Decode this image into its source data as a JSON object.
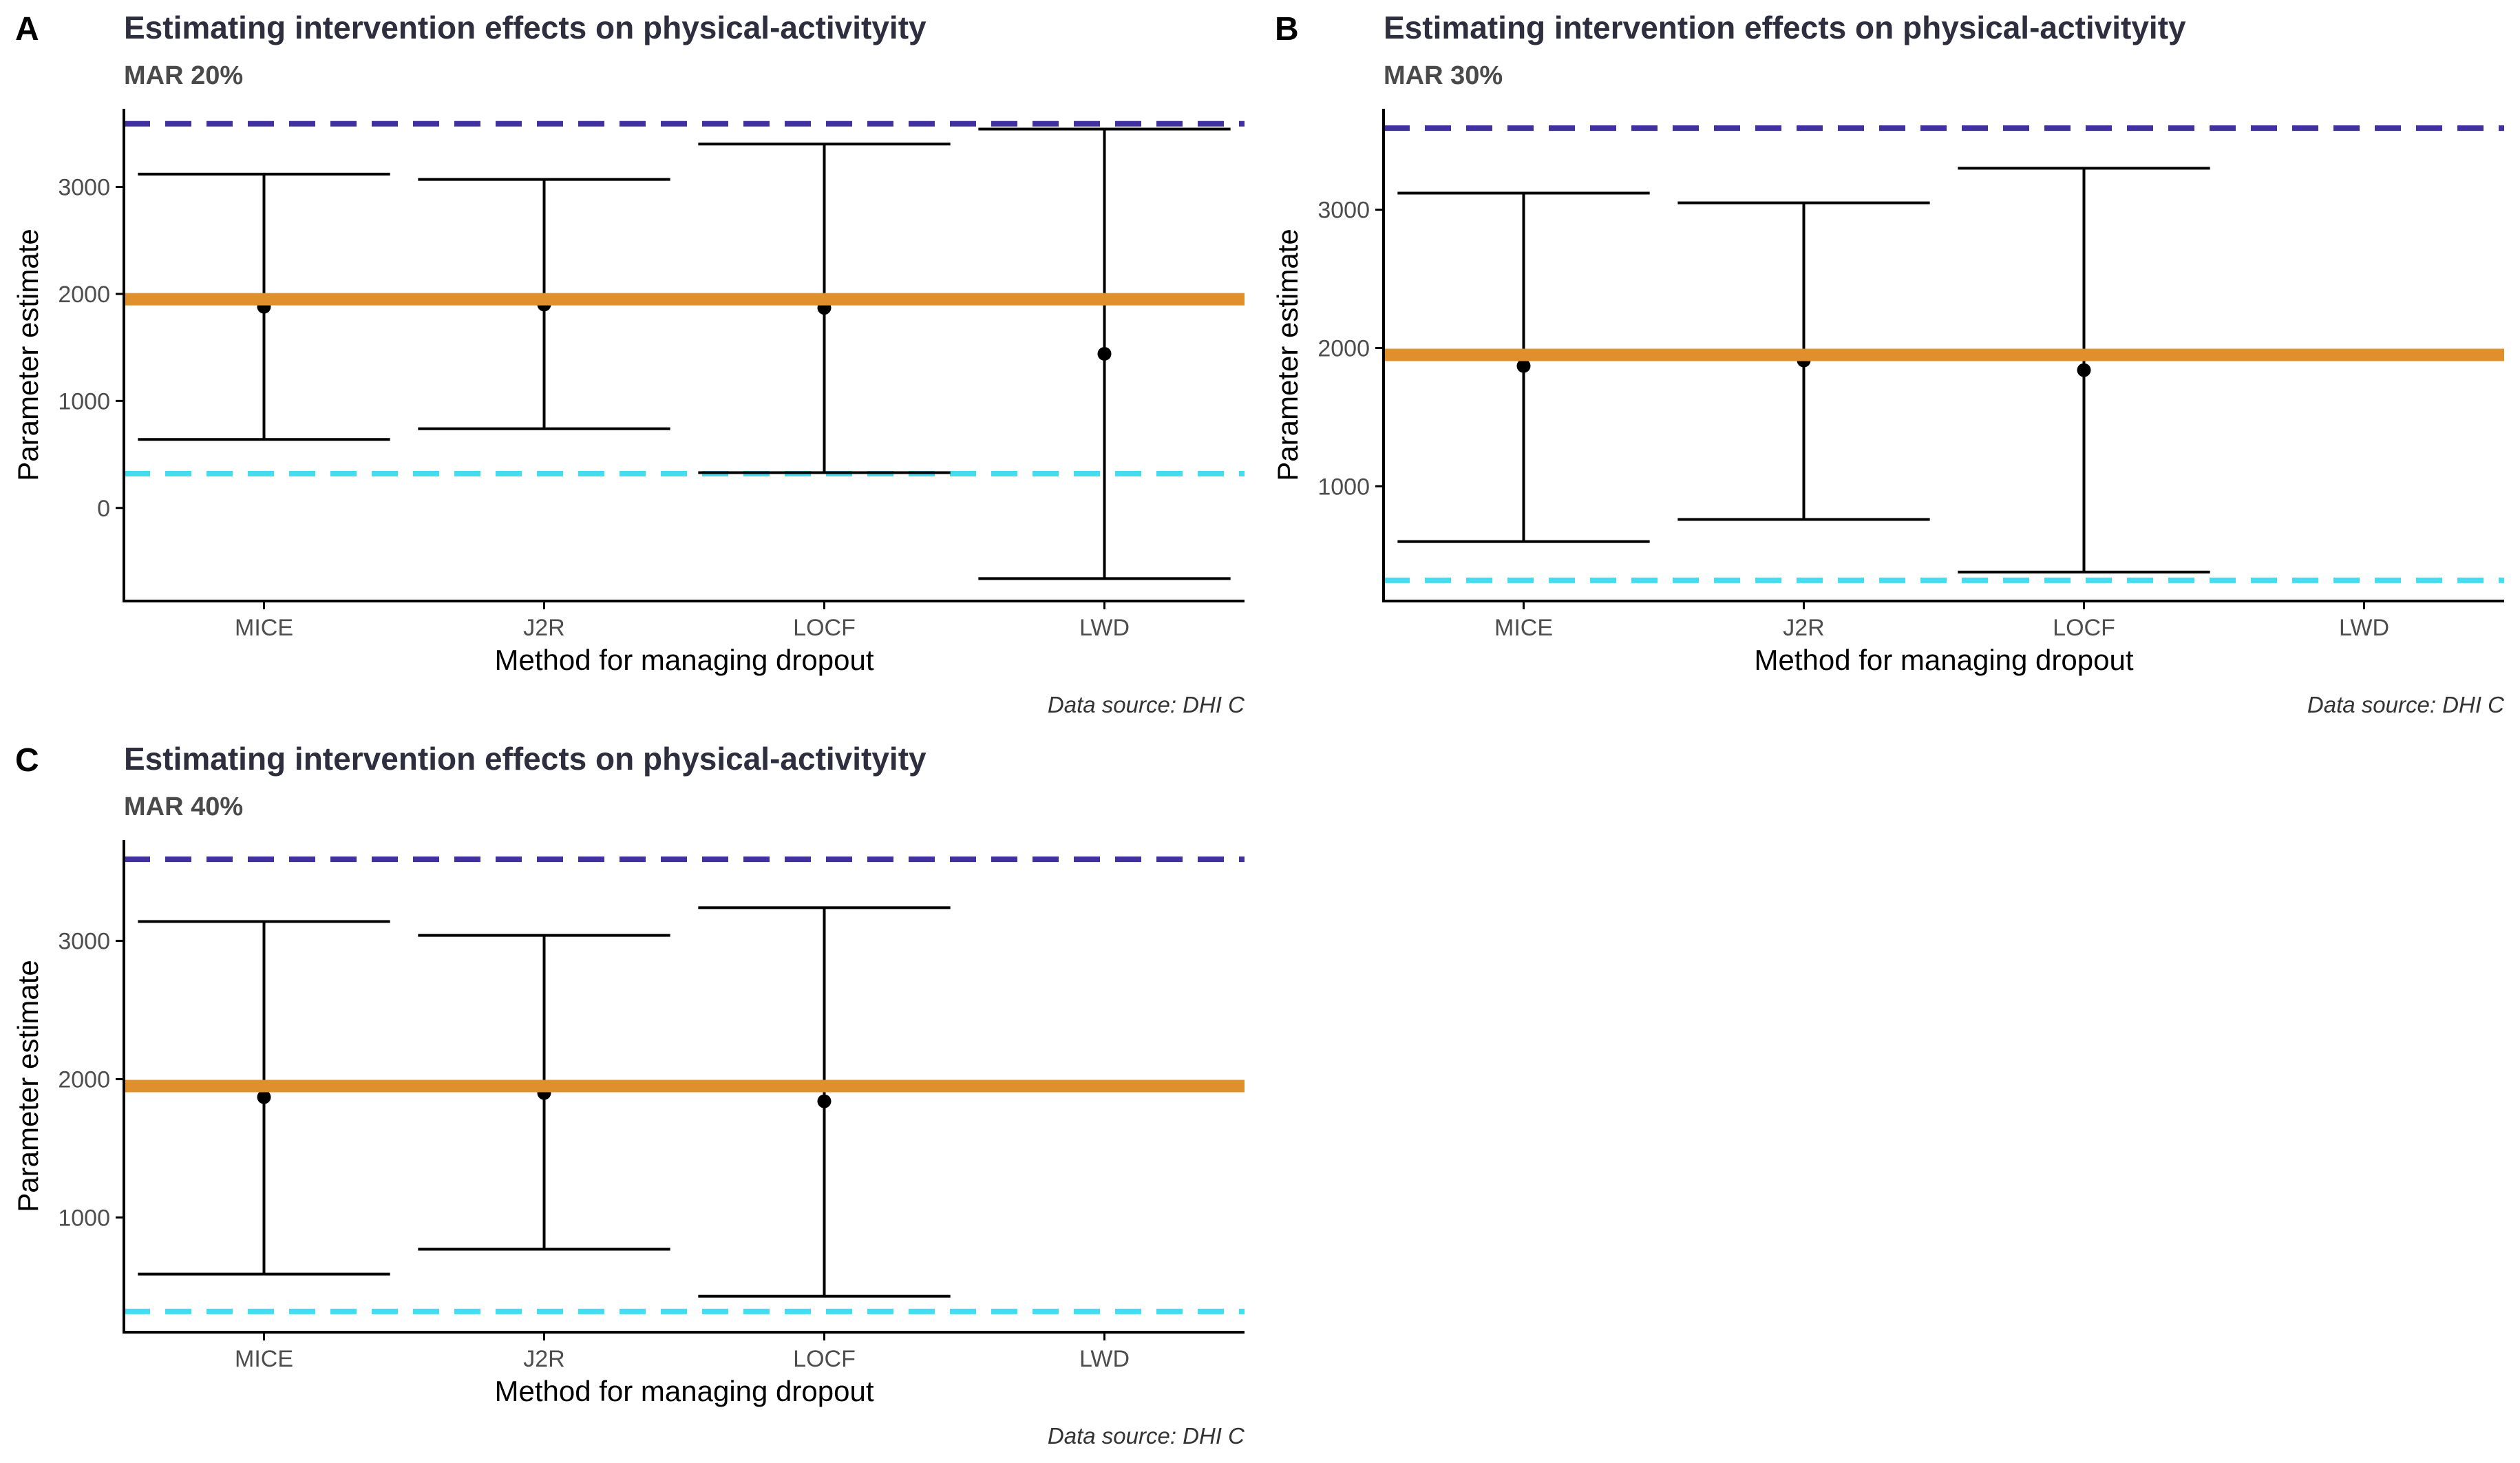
{
  "chart_data": [
    {
      "panel_label": "A",
      "type": "errorbar",
      "title": "Estimating intervention effects on physical-activityity",
      "subtitle": "MAR 20%",
      "xlabel": "Method for managing dropout",
      "ylabel": "Parameter estimate",
      "caption": "Data source: DHI C",
      "categories": [
        "MICE",
        "J2R",
        "LOCF",
        "LWD"
      ],
      "ylim": [
        -870,
        3730
      ],
      "yticks": [
        0,
        1000,
        2000,
        3000
      ],
      "ytick_labels": [
        "0",
        "1000",
        "2000",
        "3000"
      ],
      "estimates": [
        1880,
        1900,
        1870,
        1440
      ],
      "lower": [
        640,
        740,
        330,
        -660
      ],
      "upper": [
        3120,
        3070,
        3400,
        3540
      ],
      "reference_lines": {
        "true_effect": 1950,
        "upper_dashed": 3590,
        "lower_dashed": 320
      },
      "grid": false
    },
    {
      "panel_label": "B",
      "type": "errorbar",
      "title": "Estimating intervention effects on physical-activityity",
      "subtitle": "MAR 30%",
      "xlabel": "Method for managing dropout",
      "ylabel": "Parameter estimate",
      "caption": "Data source: DHI C",
      "categories": [
        "MICE",
        "J2R",
        "LOCF",
        "LWD"
      ],
      "ylim": [
        170,
        3730
      ],
      "yticks": [
        1000,
        2000,
        3000
      ],
      "ytick_labels": [
        "1000",
        "2000",
        "3000"
      ],
      "estimates": [
        1870,
        1910,
        1840,
        null
      ],
      "lower": [
        600,
        760,
        380,
        null
      ],
      "upper": [
        3120,
        3050,
        3300,
        null
      ],
      "reference_lines": {
        "true_effect": 1950,
        "upper_dashed": 3590,
        "lower_dashed": 320
      },
      "grid": false
    },
    {
      "panel_label": "C",
      "type": "errorbar",
      "title": "Estimating intervention effects on physical-activityity",
      "subtitle": "MAR 40%",
      "xlabel": "Method for managing dropout",
      "ylabel": "Parameter estimate",
      "caption": "Data source: DHI C",
      "categories": [
        "MICE",
        "J2R",
        "LOCF",
        "LWD"
      ],
      "ylim": [
        170,
        3730
      ],
      "yticks": [
        1000,
        2000,
        3000
      ],
      "ytick_labels": [
        "1000",
        "2000",
        "3000"
      ],
      "estimates": [
        1870,
        1900,
        1840,
        null
      ],
      "lower": [
        590,
        770,
        430,
        null
      ],
      "upper": [
        3140,
        3040,
        3240,
        null
      ],
      "reference_lines": {
        "true_effect": 1950,
        "upper_dashed": 3590,
        "lower_dashed": 320
      },
      "grid": false
    }
  ],
  "colors": {
    "true_effect": "#e08f2d",
    "upper_dashed": "#4030a0",
    "lower_dashed": "#44ddf0",
    "title": "#2e2e3e",
    "subtitle": "#4a4a4a",
    "axis": "#000000",
    "tick_label": "#4d4d4d"
  }
}
